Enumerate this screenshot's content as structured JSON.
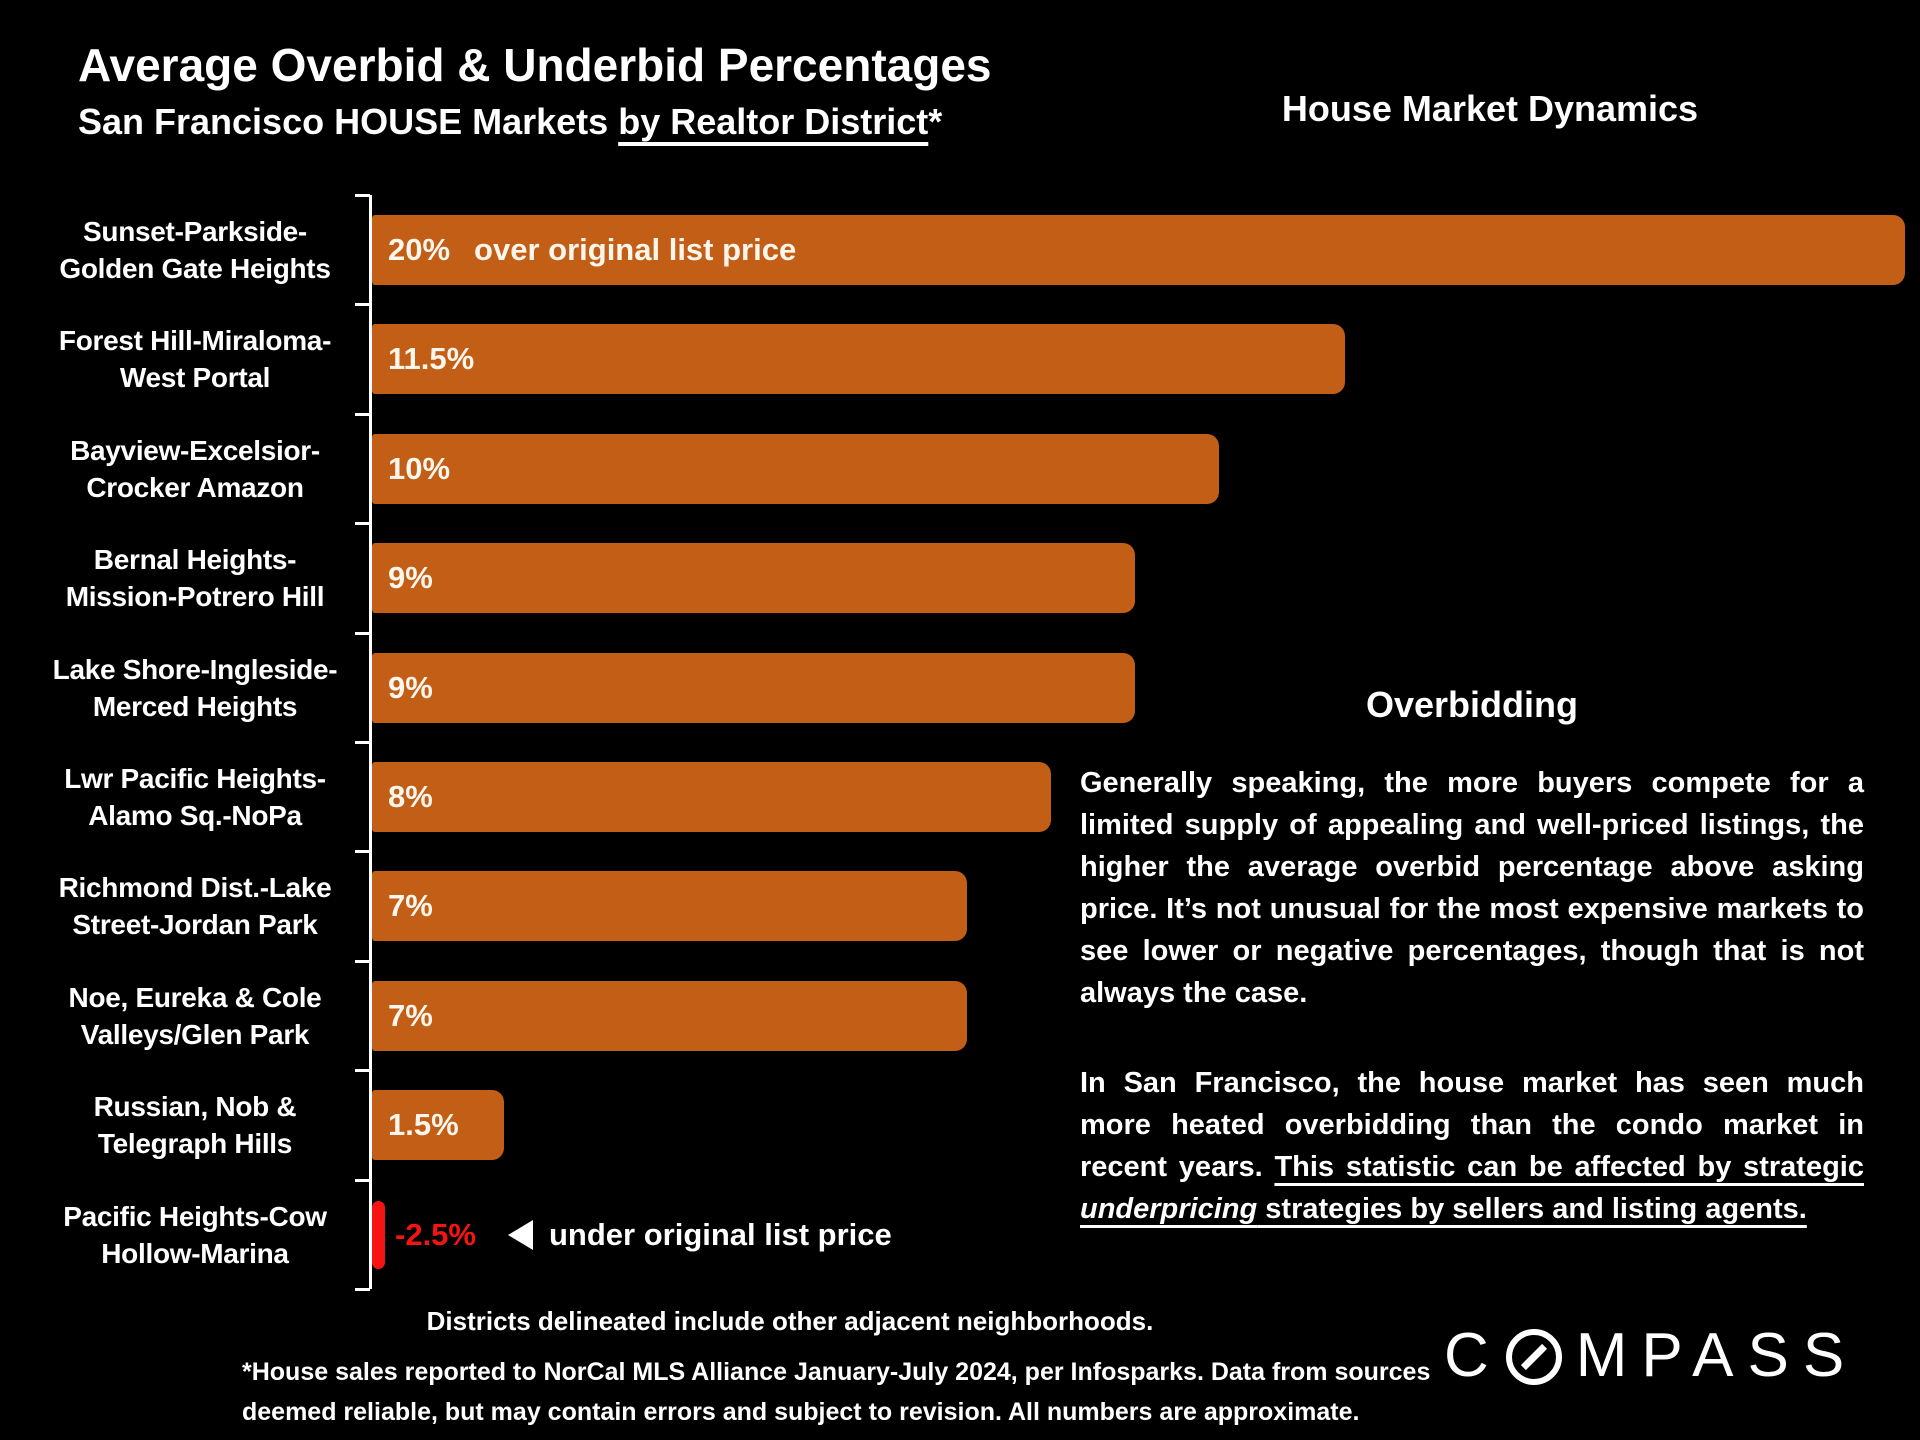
{
  "slide": {
    "title": "Average Overbid & Underbid Percentages",
    "subtitle_prefix": "San Francisco HOUSE Markets ",
    "subtitle_underlined": "by Realtor District",
    "subtitle_suffix": "*",
    "top_right_heading": "House Market Dynamics"
  },
  "colors": {
    "background": "#000000",
    "text": "#FFFFFF",
    "bar_orange": "#C25E16",
    "negative_red": "#F61412"
  },
  "icons": {
    "under_list_price_arrow": "left-triangle ◄",
    "logo_o_mark": "circle-with-diagonal-slash"
  },
  "chart_data": {
    "type": "bar",
    "orientation": "horizontal",
    "title": "Average Overbid & Underbid Percentages",
    "subtitle": "San Francisco HOUSE Markets by Realtor District*",
    "unit": "percent over/under original list price",
    "xlim": [
      0,
      20
    ],
    "grid": false,
    "legend": "none",
    "bar_color": "#C25E16",
    "negative_bar_color": "#F61412",
    "categories": [
      "Sunset-Parkside-Golden Gate Heights",
      "Forest Hill-Miraloma-West Portal",
      "Bayview-Excelsior-Crocker Amazon",
      "Bernal Heights-Mission-Potrero Hill",
      "Lake Shore-Ingleside-Merced Heights",
      "Lwr Pacific Heights-Alamo Sq.-NoPa",
      "Richmond Dist.-Lake Street-Jordan Park",
      "Noe, Eureka & Cole Valleys/Glen Park",
      "Russian, Nob & Telegraph Hills",
      "Pacific Heights-Cow Hollow-Marina"
    ],
    "category_label_lines": [
      [
        "Sunset-Parkside-",
        "Golden Gate Heights"
      ],
      [
        "Forest Hill-Miraloma-",
        "West Portal"
      ],
      [
        "Bayview-Excelsior-",
        "Crocker Amazon"
      ],
      [
        "Bernal Heights-",
        "Mission-Potrero Hill"
      ],
      [
        "Lake Shore-Ingleside-",
        "Merced Heights"
      ],
      [
        "Lwr Pacific Heights-",
        "Alamo Sq.-NoPa"
      ],
      [
        "Richmond Dist.-Lake",
        "Street-Jordan Park"
      ],
      [
        "Noe, Eureka & Cole",
        "Valleys/Glen Park"
      ],
      [
        "Russian, Nob &",
        "Telegraph Hills"
      ],
      [
        "Pacific Heights-Cow",
        "Hollow-Marina"
      ]
    ],
    "values": [
      20,
      11.5,
      10,
      9,
      9,
      8,
      7,
      7,
      1.5,
      -2.5
    ],
    "value_labels": [
      "20%",
      "11.5%",
      "10%",
      "9%",
      "9%",
      "8%",
      "7%",
      "7%",
      "1.5%",
      "-2.5%"
    ],
    "first_bar_note": "over original list price",
    "negative_bar_note": "under original list price"
  },
  "overbidding": {
    "heading": "Overbidding",
    "paragraph1": "Generally speaking, the more buyers compete for a limited supply of appealing and well-priced listings, the higher the average overbid percentage above asking price. It’s not unusual for the most expensive markets to see lower or negative percentages, though that is not always the case.",
    "paragraph2_normal": "In San Francisco, the house market has seen much more heated overbidding than the condo market in recent years. ",
    "paragraph2_underline_before_italic": "This statistic can be affected by strategic ",
    "paragraph2_italic": "underpricing",
    "paragraph2_underline_after_italic": " strategies by sellers and listing agents."
  },
  "footnotes": {
    "districts": "Districts delineated include other adjacent neighborhoods.",
    "source_line1": "*House sales reported to NorCal MLS Alliance January-July 2024, per Infosparks. Data from sources",
    "source_line2": "deemed reliable, but may contain errors and subject to revision. All numbers are approximate."
  },
  "logo": {
    "name": "COMPASS",
    "prefix": "C",
    "suffix": "MPASS"
  }
}
